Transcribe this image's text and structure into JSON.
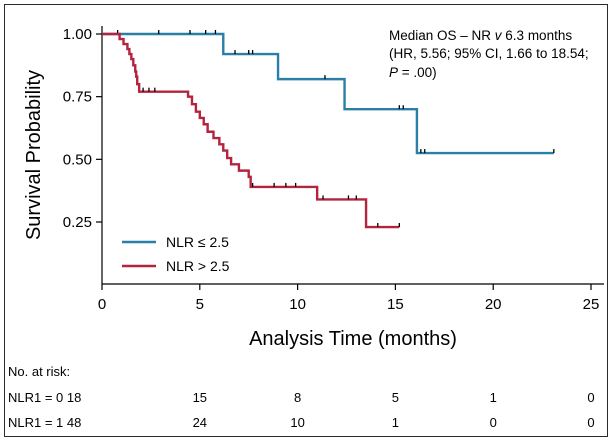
{
  "chart_data": {
    "type": "line",
    "subtype": "kaplan-meier",
    "xlabel": "Analysis Time (months)",
    "ylabel": "Survival Probability",
    "xlim": [
      0,
      25
    ],
    "ylim": [
      0.05,
      1.0
    ],
    "x_ticks": [
      "0",
      "5",
      "10",
      "15",
      "20",
      "25"
    ],
    "y_ticks": [
      "1.00",
      "0.75",
      "0.50",
      "0.25"
    ],
    "annotation": {
      "line1_a": "Median OS – NR ",
      "line1_v": "v",
      "line1_b": " 6.3 months",
      "line2": "(HR, 5.56; 95% CI, 1.66 to 18.54;",
      "line3_p": "P",
      "line3_b": " = .00)"
    },
    "series": [
      {
        "name": "NLR ≤ 2.5",
        "color": "#2a7fa6",
        "steps": [
          [
            0,
            1.0
          ],
          [
            6.2,
            0.92
          ],
          [
            9.0,
            0.82
          ],
          [
            12.4,
            0.7
          ],
          [
            16.1,
            0.525
          ]
        ],
        "end_x": 23.1,
        "censored": [
          0.8,
          2.9,
          4.5,
          5.3,
          5.8,
          6.8,
          7.5,
          7.7,
          11.4,
          15.2,
          15.4,
          16.3,
          16.5,
          23.1
        ]
      },
      {
        "name": "NLR > 2.5",
        "color": "#b3243f",
        "steps": [
          [
            0,
            1.0
          ],
          [
            0.9,
            0.98
          ],
          [
            1.1,
            0.96
          ],
          [
            1.3,
            0.94
          ],
          [
            1.4,
            0.92
          ],
          [
            1.5,
            0.9
          ],
          [
            1.6,
            0.875
          ],
          [
            1.7,
            0.85
          ],
          [
            1.75,
            0.83
          ],
          [
            1.8,
            0.8
          ],
          [
            1.9,
            0.77
          ],
          [
            4.4,
            0.75
          ],
          [
            4.6,
            0.72
          ],
          [
            4.8,
            0.69
          ],
          [
            5.0,
            0.665
          ],
          [
            5.2,
            0.64
          ],
          [
            5.4,
            0.61
          ],
          [
            5.7,
            0.585
          ],
          [
            6.0,
            0.56
          ],
          [
            6.2,
            0.535
          ],
          [
            6.4,
            0.505
          ],
          [
            6.6,
            0.48
          ],
          [
            7.0,
            0.455
          ],
          [
            7.5,
            0.43
          ],
          [
            7.6,
            0.39
          ],
          [
            11.0,
            0.34
          ],
          [
            13.5,
            0.23
          ]
        ],
        "end_x": 15.2,
        "censored": [
          2.1,
          2.4,
          2.7,
          7.7,
          8.8,
          9.4,
          9.9,
          11.3,
          12.6,
          13.0,
          14.1,
          15.2
        ]
      }
    ]
  },
  "risk_table": {
    "header": "No. at risk:",
    "rows": [
      {
        "label": "NLR1 = 0 18",
        "values": [
          "15",
          "8",
          "5",
          "1",
          "0"
        ]
      },
      {
        "label": "NLR1 = 1 48",
        "values": [
          "24",
          "10",
          "1",
          "0",
          "0"
        ]
      }
    ]
  }
}
